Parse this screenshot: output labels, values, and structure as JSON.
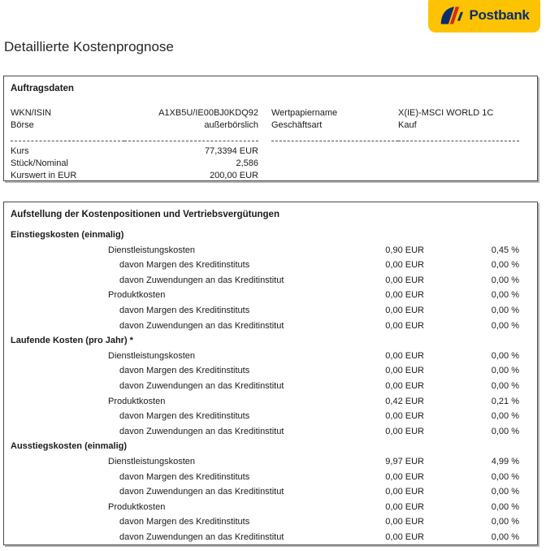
{
  "logo": {
    "text": "Postbank"
  },
  "colors": {
    "brand_yellow": "#FDC300",
    "brand_blue": "#0A2D6E",
    "brand_red": "#D52B1E"
  },
  "title": "Detaillierte Kostenprognose",
  "auftragsdaten": {
    "heading": "Auftragsdaten",
    "top_fields": [
      {
        "label": "WKN/ISIN",
        "value": "A1XB5U/IE00BJ0KDQ92"
      },
      {
        "label": "Börse",
        "value": "außerbörslich"
      },
      {
        "label": "Wertpapiername",
        "value": "X(IE)-MSCI WORLD 1C"
      },
      {
        "label": "Geschäftsart",
        "value": "Kauf"
      }
    ],
    "bottom_fields": [
      {
        "label": "Kurs",
        "value": "77,3394 EUR"
      },
      {
        "label": "Stück/Nominal",
        "value": "2,586"
      },
      {
        "label": "Kurswert in EUR",
        "value": "200,00 EUR"
      }
    ]
  },
  "kosten": {
    "heading": "Aufstellung der Kostenpositionen und Vertriebsvergütungen",
    "groups": [
      {
        "heading": "Einstiegskosten (einmalig)",
        "rows": [
          {
            "label": "Dienstleistungskosten",
            "indent": 1,
            "eur": "0,90 EUR",
            "pct": "0,45 %"
          },
          {
            "label": "davon Margen des Kreditinstituts",
            "indent": 2,
            "eur": "0,00 EUR",
            "pct": "0,00 %"
          },
          {
            "label": "davon Zuwendungen an das Kreditinstitut",
            "indent": 2,
            "eur": "0,00 EUR",
            "pct": "0,00 %"
          },
          {
            "label": "Produktkosten",
            "indent": 1,
            "eur": "0,00 EUR",
            "pct": "0,00 %"
          },
          {
            "label": "davon Margen des Kreditinstituts",
            "indent": 2,
            "eur": "0,00 EUR",
            "pct": "0,00 %"
          },
          {
            "label": "davon Zuwendungen an das Kreditinstitut",
            "indent": 2,
            "eur": "0,00 EUR",
            "pct": "0,00 %"
          }
        ]
      },
      {
        "heading": "Laufende Kosten (pro Jahr) *",
        "rows": [
          {
            "label": "Dienstleistungskosten",
            "indent": 1,
            "eur": "0,00 EUR",
            "pct": "0,00 %"
          },
          {
            "label": "davon Margen des Kreditinstituts",
            "indent": 2,
            "eur": "0,00 EUR",
            "pct": "0,00 %"
          },
          {
            "label": "davon Zuwendungen an das Kreditinstitut",
            "indent": 2,
            "eur": "0,00 EUR",
            "pct": "0,00 %"
          },
          {
            "label": "Produktkosten",
            "indent": 1,
            "eur": "0,42 EUR",
            "pct": "0,21 %"
          },
          {
            "label": "davon Margen des Kreditinstituts",
            "indent": 2,
            "eur": "0,00 EUR",
            "pct": "0,00 %"
          },
          {
            "label": "davon Zuwendungen an das Kreditinstitut",
            "indent": 2,
            "eur": "0,00 EUR",
            "pct": "0,00 %"
          }
        ]
      },
      {
        "heading": "Ausstiegskosten (einmalig)",
        "rows": [
          {
            "label": "Dienstleistungskosten",
            "indent": 1,
            "eur": "9,97 EUR",
            "pct": "4,99 %"
          },
          {
            "label": "davon Margen des Kreditinstituts",
            "indent": 2,
            "eur": "0,00 EUR",
            "pct": "0,00 %"
          },
          {
            "label": "davon Zuwendungen an das Kreditinstitut",
            "indent": 2,
            "eur": "0,00 EUR",
            "pct": "0,00 %"
          },
          {
            "label": "Produktkosten",
            "indent": 1,
            "eur": "0,00 EUR",
            "pct": "0,00 %"
          },
          {
            "label": "davon Margen des Kreditinstituts",
            "indent": 2,
            "eur": "0,00 EUR",
            "pct": "0,00 %"
          },
          {
            "label": "davon Zuwendungen an das Kreditinstitut",
            "indent": 2,
            "eur": "0,00 EUR",
            "pct": "0,00 %"
          }
        ]
      }
    ]
  }
}
